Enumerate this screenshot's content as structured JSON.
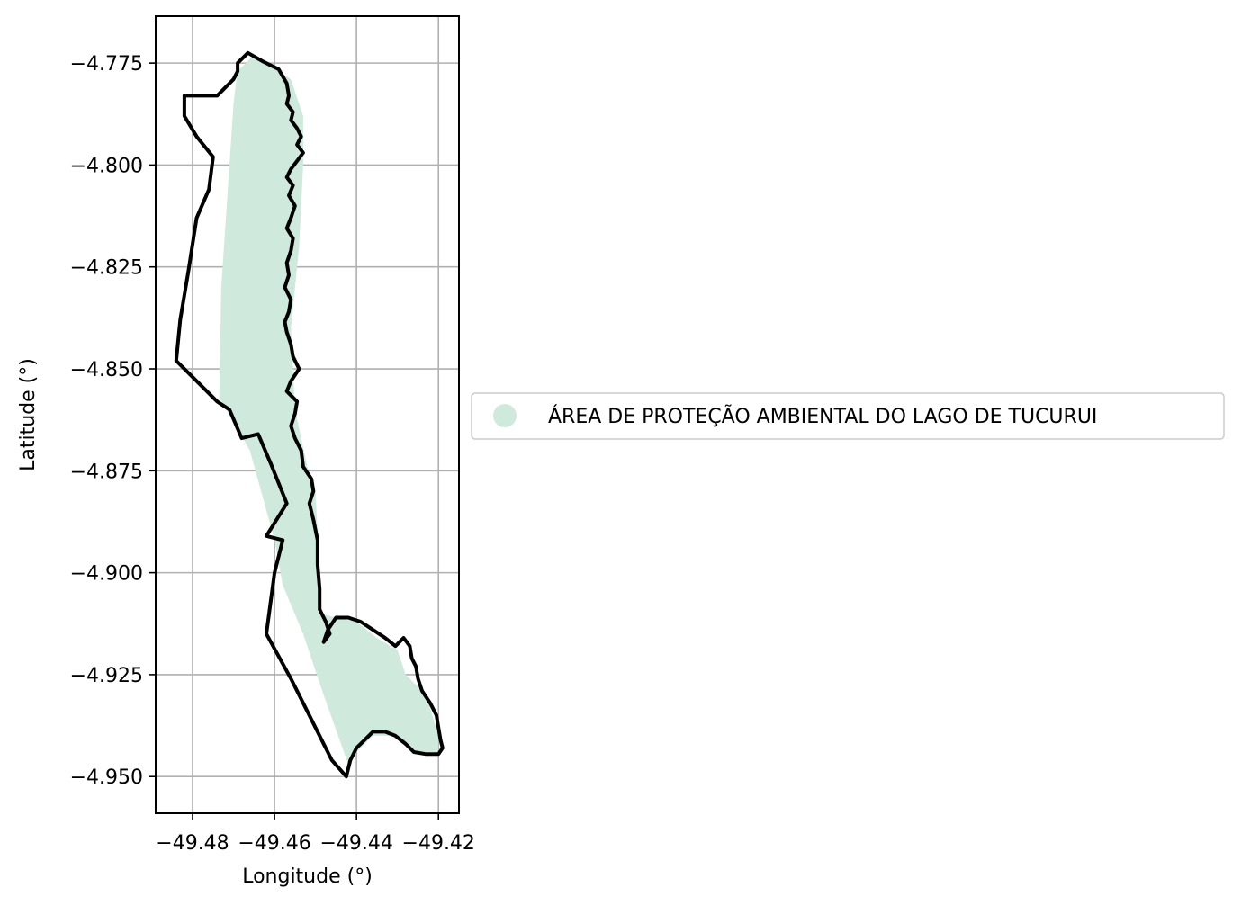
{
  "chart_data": {
    "type": "map",
    "xlabel": "Longitude (°)",
    "ylabel": "Latitude (°)",
    "xlim": [
      -49.489,
      -49.415
    ],
    "ylim": [
      -4.959,
      -4.7635
    ],
    "xticks": [
      -49.48,
      -49.46,
      -49.44,
      -49.42
    ],
    "xtick_labels": [
      "−49.48",
      "−49.46",
      "−49.44",
      "−49.42"
    ],
    "yticks": [
      -4.775,
      -4.8,
      -4.825,
      -4.85,
      -4.875,
      -4.9,
      -4.925,
      -4.95
    ],
    "ytick_labels": [
      "−4.775",
      "−4.800",
      "−4.825",
      "−4.850",
      "−4.875",
      "−4.900",
      "−4.925",
      "−4.950"
    ],
    "grid": true,
    "legend": {
      "position": "right",
      "entries": [
        {
          "label": "ÁREA DE PROTEÇÃO AMBIENTAL DO LAGO DE TUCURUI",
          "color": "#cfe9dd"
        }
      ]
    },
    "fill_color": "#cfe9dd",
    "outline_color": "#000000",
    "fill_polygon": [
      [
        -49.4685,
        -4.7765
      ],
      [
        -49.465,
        -4.773
      ],
      [
        -49.46,
        -4.776
      ],
      [
        -49.456,
        -4.779
      ],
      [
        -49.453,
        -4.788
      ],
      [
        -49.453,
        -4.8
      ],
      [
        -49.454,
        -4.82
      ],
      [
        -49.456,
        -4.84
      ],
      [
        -49.455,
        -4.86
      ],
      [
        -49.452,
        -4.874
      ],
      [
        -49.45,
        -4.88
      ],
      [
        -49.449,
        -4.9
      ],
      [
        -49.449,
        -4.91
      ],
      [
        -49.445,
        -4.911
      ],
      [
        -49.44,
        -4.912
      ],
      [
        -49.435,
        -4.916
      ],
      [
        -49.43,
        -4.919
      ],
      [
        -49.428,
        -4.925
      ],
      [
        -49.423,
        -4.93
      ],
      [
        -49.42,
        -4.94
      ],
      [
        -49.42,
        -4.944
      ],
      [
        -49.426,
        -4.944
      ],
      [
        -49.431,
        -4.94
      ],
      [
        -49.436,
        -4.94
      ],
      [
        -49.44,
        -4.944
      ],
      [
        -49.442,
        -4.947
      ],
      [
        -49.448,
        -4.93
      ],
      [
        -49.453,
        -4.915
      ],
      [
        -49.458,
        -4.903
      ],
      [
        -49.46,
        -4.892
      ],
      [
        -49.466,
        -4.87
      ],
      [
        -49.4735,
        -4.857
      ],
      [
        -49.473,
        -4.83
      ],
      [
        -49.471,
        -4.8
      ],
      [
        -49.47,
        -4.785
      ],
      [
        -49.469,
        -4.7765
      ]
    ],
    "outline_polygon": [
      [
        -49.4665,
        -4.7725
      ],
      [
        -49.463,
        -4.7745
      ],
      [
        -49.459,
        -4.7765
      ],
      [
        -49.457,
        -4.78
      ],
      [
        -49.4565,
        -4.783
      ],
      [
        -49.457,
        -4.785
      ],
      [
        -49.4555,
        -4.787
      ],
      [
        -49.456,
        -4.789
      ],
      [
        -49.4545,
        -4.791
      ],
      [
        -49.4535,
        -4.793
      ],
      [
        -49.4545,
        -4.795
      ],
      [
        -49.453,
        -4.797
      ],
      [
        -49.4545,
        -4.799
      ],
      [
        -49.456,
        -4.801
      ],
      [
        -49.457,
        -4.803
      ],
      [
        -49.4555,
        -4.805
      ],
      [
        -49.4565,
        -4.8075
      ],
      [
        -49.455,
        -4.81
      ],
      [
        -49.456,
        -4.813
      ],
      [
        -49.457,
        -4.8155
      ],
      [
        -49.4555,
        -4.818
      ],
      [
        -49.456,
        -4.821
      ],
      [
        -49.457,
        -4.824
      ],
      [
        -49.4565,
        -4.827
      ],
      [
        -49.4575,
        -4.83
      ],
      [
        -49.456,
        -4.833
      ],
      [
        -49.4565,
        -4.836
      ],
      [
        -49.4575,
        -4.8385
      ],
      [
        -49.457,
        -4.841
      ],
      [
        -49.456,
        -4.844
      ],
      [
        -49.4555,
        -4.847
      ],
      [
        -49.454,
        -4.85
      ],
      [
        -49.456,
        -4.853
      ],
      [
        -49.457,
        -4.8555
      ],
      [
        -49.4545,
        -4.858
      ],
      [
        -49.455,
        -4.861
      ],
      [
        -49.456,
        -4.864
      ],
      [
        -49.455,
        -4.867
      ],
      [
        -49.4535,
        -4.87
      ],
      [
        -49.453,
        -4.874
      ],
      [
        -49.451,
        -4.877
      ],
      [
        -49.4505,
        -4.88
      ],
      [
        -49.4515,
        -4.883
      ],
      [
        -49.4505,
        -4.887
      ],
      [
        -49.4495,
        -4.892
      ],
      [
        -49.4495,
        -4.898
      ],
      [
        -49.449,
        -4.904
      ],
      [
        -49.449,
        -4.909
      ],
      [
        -49.4475,
        -4.912
      ],
      [
        -49.4465,
        -4.915
      ],
      [
        -49.448,
        -4.917
      ],
      [
        -49.447,
        -4.914
      ],
      [
        -49.445,
        -4.911
      ],
      [
        -49.442,
        -4.911
      ],
      [
        -49.439,
        -4.912
      ],
      [
        -49.436,
        -4.914
      ],
      [
        -49.433,
        -4.916
      ],
      [
        -49.4305,
        -4.918
      ],
      [
        -49.4285,
        -4.916
      ],
      [
        -49.427,
        -4.918
      ],
      [
        -49.4265,
        -4.921
      ],
      [
        -49.4255,
        -4.923
      ],
      [
        -49.425,
        -4.926
      ],
      [
        -49.424,
        -4.929
      ],
      [
        -49.422,
        -4.932
      ],
      [
        -49.4205,
        -4.935
      ],
      [
        -49.42,
        -4.938
      ],
      [
        -49.4195,
        -4.941
      ],
      [
        -49.419,
        -4.943
      ],
      [
        -49.42,
        -4.9445
      ],
      [
        -49.423,
        -4.9445
      ],
      [
        -49.426,
        -4.944
      ],
      [
        -49.428,
        -4.942
      ],
      [
        -49.4305,
        -4.94
      ],
      [
        -49.433,
        -4.939
      ],
      [
        -49.436,
        -4.939
      ],
      [
        -49.438,
        -4.941
      ],
      [
        -49.44,
        -4.943
      ],
      [
        -49.4415,
        -4.946
      ],
      [
        -49.4425,
        -4.95
      ],
      [
        -49.446,
        -4.946
      ],
      [
        -49.45,
        -4.938
      ],
      [
        -49.456,
        -4.926
      ],
      [
        -49.462,
        -4.915
      ],
      [
        -49.46,
        -4.9
      ],
      [
        -49.458,
        -4.892
      ],
      [
        -49.462,
        -4.891
      ],
      [
        -49.457,
        -4.883
      ],
      [
        -49.461,
        -4.873
      ],
      [
        -49.464,
        -4.866
      ],
      [
        -49.468,
        -4.867
      ],
      [
        -49.471,
        -4.86
      ],
      [
        -49.474,
        -4.858
      ],
      [
        -49.479,
        -4.853
      ],
      [
        -49.484,
        -4.848
      ],
      [
        -49.483,
        -4.838
      ],
      [
        -49.481,
        -4.826
      ],
      [
        -49.479,
        -4.813
      ],
      [
        -49.476,
        -4.806
      ],
      [
        -49.475,
        -4.798
      ],
      [
        -49.479,
        -4.793
      ],
      [
        -49.482,
        -4.788
      ],
      [
        -49.482,
        -4.783
      ],
      [
        -49.477,
        -4.783
      ],
      [
        -49.474,
        -4.783
      ],
      [
        -49.472,
        -4.781
      ],
      [
        -49.47,
        -4.779
      ],
      [
        -49.469,
        -4.777
      ],
      [
        -49.469,
        -4.775
      ],
      [
        -49.4665,
        -4.7725
      ]
    ]
  }
}
